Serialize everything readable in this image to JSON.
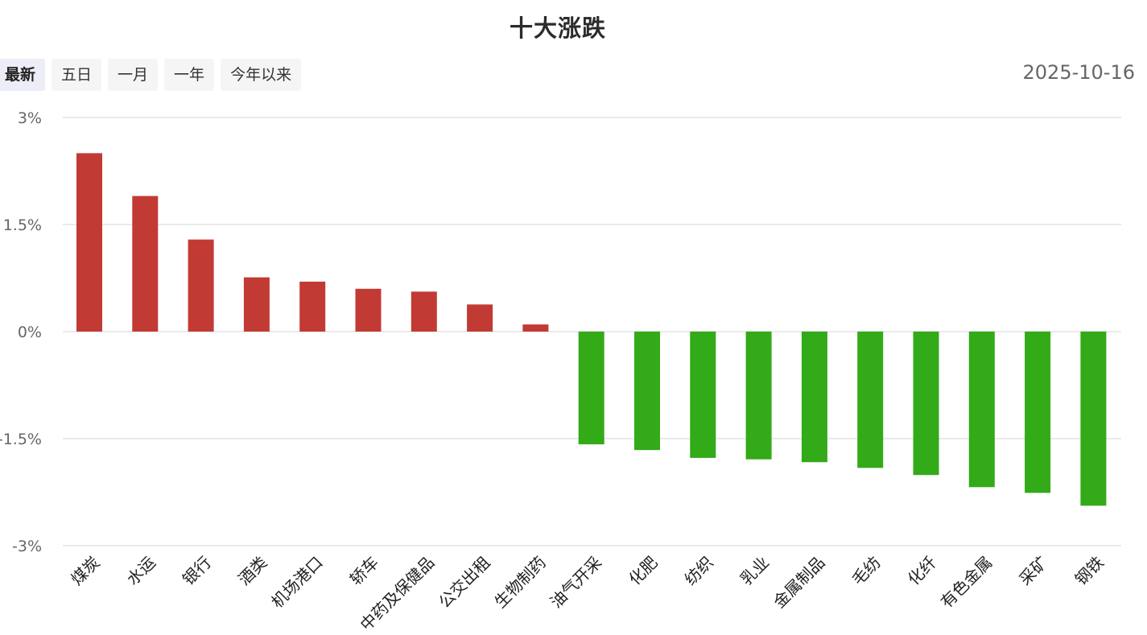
{
  "title": "十大涨跌",
  "date": "2025-10-16",
  "tabs": [
    {
      "label": "最新",
      "active": true
    },
    {
      "label": "五日",
      "active": false
    },
    {
      "label": "一月",
      "active": false
    },
    {
      "label": "一年",
      "active": false
    },
    {
      "label": "今年以来",
      "active": false
    }
  ],
  "colors": {
    "up": "#c23a34",
    "down": "#33aa18",
    "grid": "#e3e3e3",
    "axis_text": "#666666"
  },
  "chart_data": {
    "type": "bar",
    "title": "十大涨跌",
    "xlabel": "",
    "ylabel": "",
    "ylim": [
      -3,
      3
    ],
    "yticks": [
      3,
      1.5,
      0,
      -1.5,
      -3
    ],
    "ytick_labels": [
      "3%",
      "1.5%",
      "0%",
      "-1.5%",
      "-3%"
    ],
    "grid": true,
    "categories": [
      "煤炭",
      "水运",
      "银行",
      "酒类",
      "机场港口",
      "轿车",
      "中药及保健品",
      "公交出租",
      "生物制药",
      "油气开采",
      "化肥",
      "纺织",
      "乳业",
      "金属制品",
      "毛纺",
      "化纤",
      "有色金属",
      "采矿",
      "钢铁"
    ],
    "values": [
      2.5,
      1.9,
      1.29,
      0.76,
      0.7,
      0.6,
      0.56,
      0.38,
      0.1,
      -1.58,
      -1.66,
      -1.77,
      -1.79,
      -1.83,
      -1.91,
      -2.01,
      -2.18,
      -2.26,
      -2.44
    ]
  }
}
